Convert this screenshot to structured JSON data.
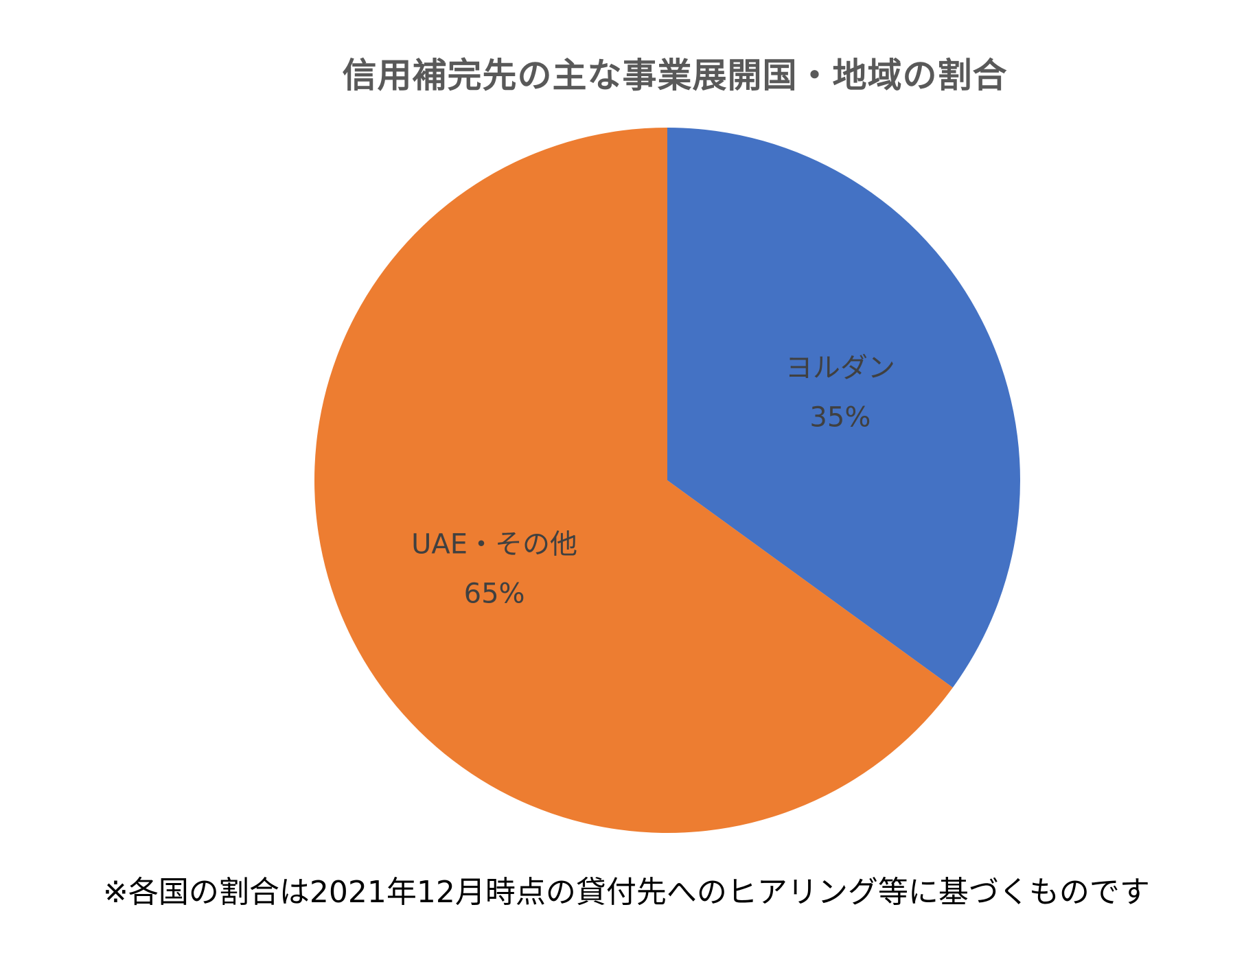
{
  "chart_data": {
    "type": "pie",
    "title": "信用補完先の主な事業展開国・地域の割合",
    "slices": [
      {
        "label": "ヨルダン",
        "value": 35,
        "value_label": "35%",
        "color": "#4472C4"
      },
      {
        "label": "UAE・その他",
        "value": 65,
        "value_label": "65%",
        "color": "#ED7D31"
      }
    ],
    "start_angle_deg": 0,
    "direction": "clockwise",
    "legend": "none"
  },
  "footnote": "※各国の割合は2021年12月時点の貸付先へのヒアリング等に基づくものです"
}
